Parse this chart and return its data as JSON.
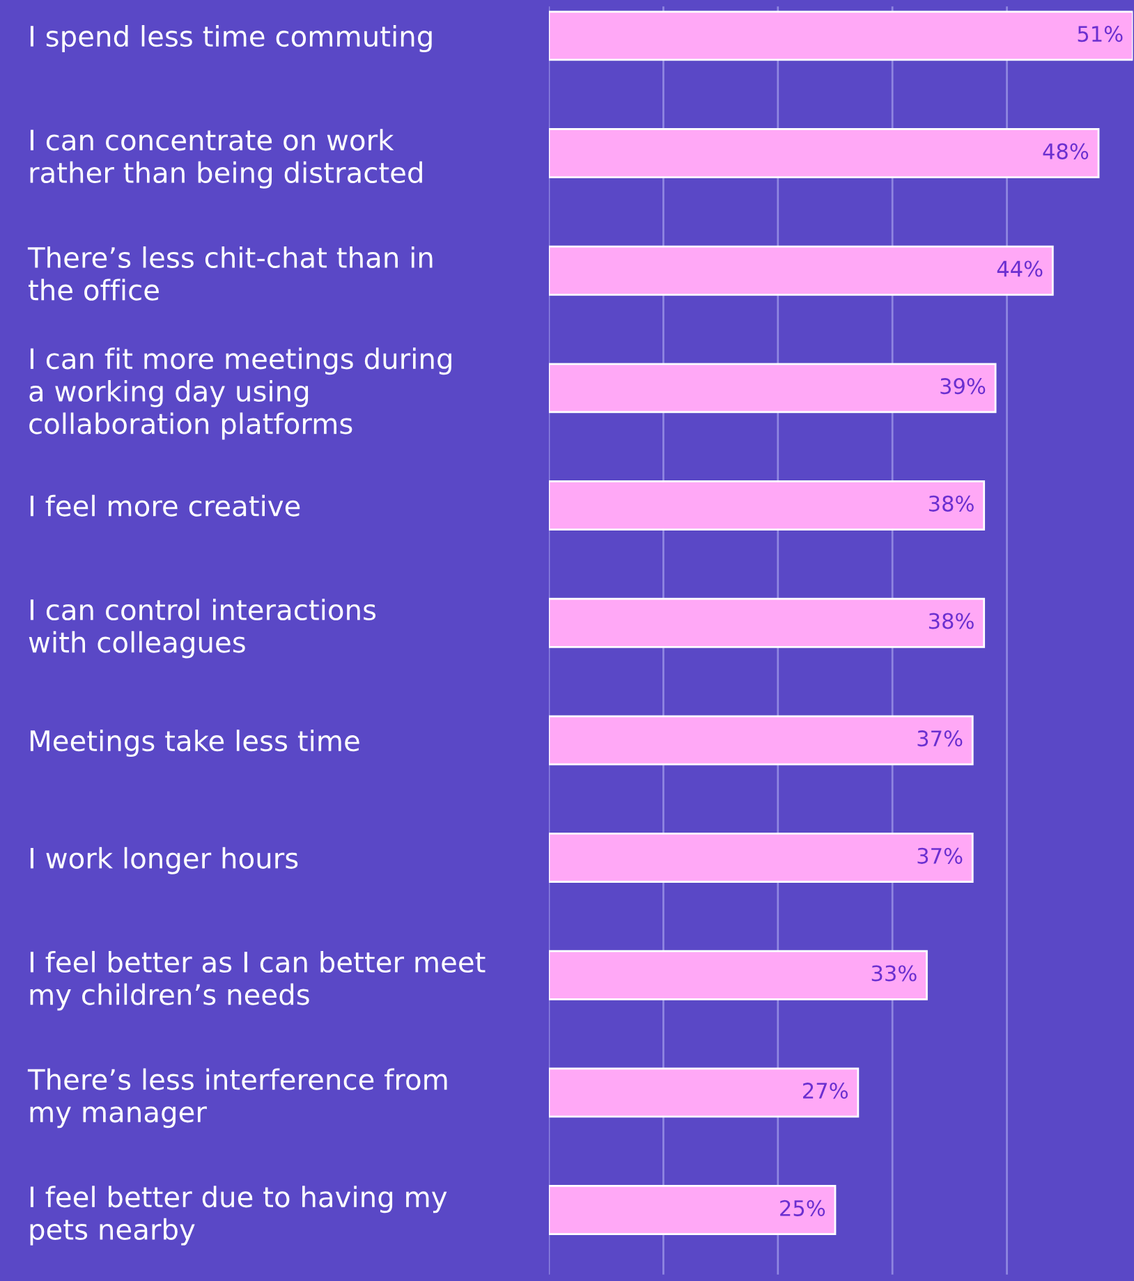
{
  "chart_data": {
    "type": "bar",
    "orientation": "horizontal",
    "categories": [
      "I spend less time commuting",
      "I can concentrate on work\nrather than being distracted",
      "There’s less chit-chat than in\nthe office",
      "I can fit more meetings during\na working day using\ncollaboration platforms",
      "I feel more creative",
      "I can control interactions\nwith colleagues",
      "Meetings take less time",
      "I work longer hours",
      "I feel better as I can better meet\nmy children’s needs",
      "There’s less interference from\nmy manager",
      "I feel better due to having my\npets nearby"
    ],
    "values": [
      51,
      48,
      44,
      39,
      38,
      38,
      37,
      37,
      33,
      27,
      25
    ],
    "value_labels": [
      "51%",
      "48%",
      "44%",
      "39%",
      "38%",
      "38%",
      "37%",
      "37%",
      "33%",
      "27%",
      "25%"
    ],
    "color": "#ffa8f6",
    "xlim": [
      0,
      51
    ],
    "xticks": [
      {
        "value": 0,
        "label": null
      },
      {
        "value": 10,
        "label": null
      },
      {
        "value": 20,
        "label": null
      },
      {
        "value": 30,
        "label": null
      },
      {
        "value": 40,
        "label": null
      }
    ],
    "grid": "x",
    "tick_labels": "y"
  }
}
